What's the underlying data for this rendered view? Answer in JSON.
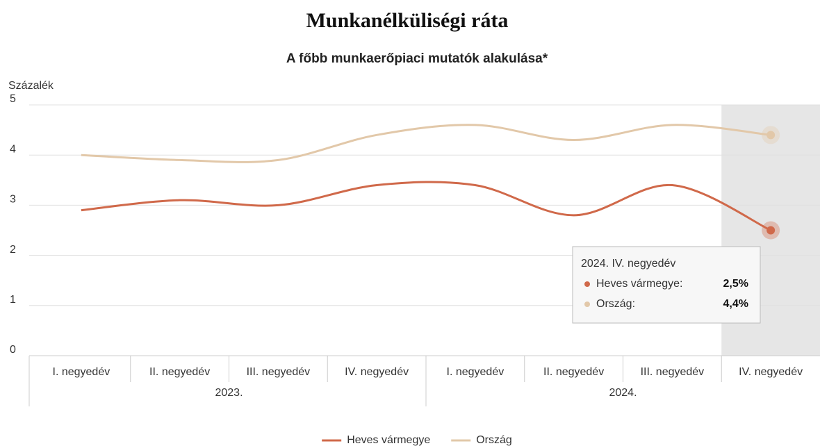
{
  "chart_data": {
    "type": "line",
    "title": "Munkanélküliségi ráta",
    "subtitle": "A főbb munkaerőpiaci mutatók alakulása*",
    "y_label": "Százalék",
    "categories": [
      "I. negyedév",
      "II. negyedév",
      "III. negyedév",
      "IV. negyedév",
      "I. negyedév",
      "II. negyedév",
      "III. negyedév",
      "IV. negyedév"
    ],
    "category_groups": [
      "2023.",
      "2024."
    ],
    "series": [
      {
        "name": "Heves vármegye",
        "color": "#d0694a",
        "values": [
          2.9,
          3.1,
          3.0,
          3.4,
          3.4,
          2.8,
          3.4,
          2.5
        ]
      },
      {
        "name": "Ország",
        "color": "#e2c8a9",
        "values": [
          4.0,
          3.9,
          3.9,
          4.4,
          4.6,
          4.3,
          4.6,
          4.4
        ]
      }
    ],
    "ylim": [
      0,
      5
    ],
    "yticks": [
      0,
      1,
      2,
      3,
      4,
      5
    ],
    "grid": true,
    "legend": "bottom",
    "tooltip": {
      "title": "2024. IV. negyedév",
      "labels": [
        "Heves vármegye:",
        "Ország:"
      ],
      "value_labels": [
        "2,5%",
        "4,4%"
      ]
    }
  }
}
